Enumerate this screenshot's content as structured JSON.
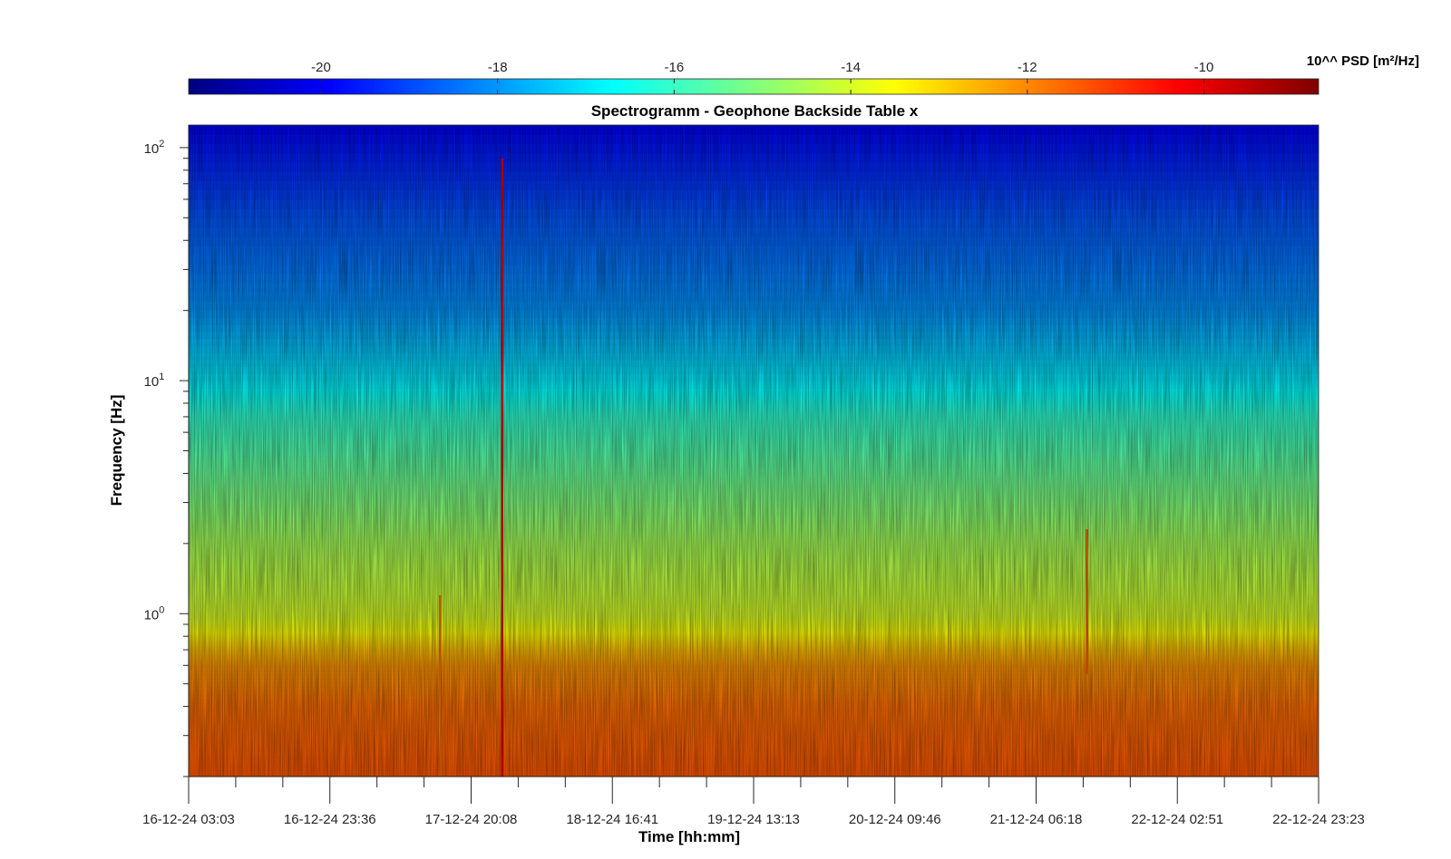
{
  "chart_data": {
    "type": "heatmap",
    "title": "Spectrogramm - Geophone Backside Table x",
    "xlabel": "Time [hh:mm]",
    "ylabel": "Frequency [Hz]",
    "x_ticks": [
      "16-12-24 03:03",
      "16-12-24 23:36",
      "17-12-24 20:08",
      "18-12-24 16:41",
      "19-12-24 13:13",
      "20-12-24 09:46",
      "21-12-24 06:18",
      "22-12-24 02:51",
      "22-12-24 23:23"
    ],
    "y_scale": "log",
    "y_ticks": [
      {
        "base": "10",
        "exp": "0"
      },
      {
        "base": "10",
        "exp": "1"
      },
      {
        "base": "10",
        "exp": "2"
      }
    ],
    "ylim": [
      0.2,
      125
    ],
    "colorbar": {
      "label": "10^^ PSD [m²/Hz]",
      "colormap": "jet",
      "range": [
        -21.5,
        -8.7
      ],
      "ticks": [
        "-20",
        "-18",
        "-16",
        "-14",
        "-12",
        "-10"
      ],
      "tick_values": [
        -20,
        -18,
        -16,
        -14,
        -12,
        -10
      ]
    },
    "spectral_profile": [
      {
        "f": 0.2,
        "log_psd": -11.4
      },
      {
        "f": 0.4,
        "log_psd": -11.7
      },
      {
        "f": 0.6,
        "log_psd": -12.2
      },
      {
        "f": 0.7,
        "log_psd": -12.7
      },
      {
        "f": 0.85,
        "log_psd": -13.6
      },
      {
        "f": 1.0,
        "log_psd": -14.0
      },
      {
        "f": 2.0,
        "log_psd": -14.6
      },
      {
        "f": 4.0,
        "log_psd": -15.4
      },
      {
        "f": 7.0,
        "log_psd": -16.1
      },
      {
        "f": 10.0,
        "log_psd": -16.9
      },
      {
        "f": 20.0,
        "log_psd": -18.0
      },
      {
        "f": 50.0,
        "log_psd": -18.8
      },
      {
        "f": 125.0,
        "log_psd": -19.9
      }
    ],
    "events": [
      {
        "time_index": 2.22,
        "f_min": 0.2,
        "f_max": 90,
        "log_psd": -10.0
      },
      {
        "time_index": 1.78,
        "f_min": 0.2,
        "f_max": 1.2,
        "log_psd": -11.8
      },
      {
        "time_index": 6.36,
        "f_min": 0.55,
        "f_max": 2.3,
        "log_psd": -11.5
      }
    ],
    "colors": {
      "jet": [
        "#00007f",
        "#0000ff",
        "#007fff",
        "#00ffff",
        "#7fff7f",
        "#ffff00",
        "#ff7f00",
        "#ff0000",
        "#7f0000"
      ]
    }
  }
}
